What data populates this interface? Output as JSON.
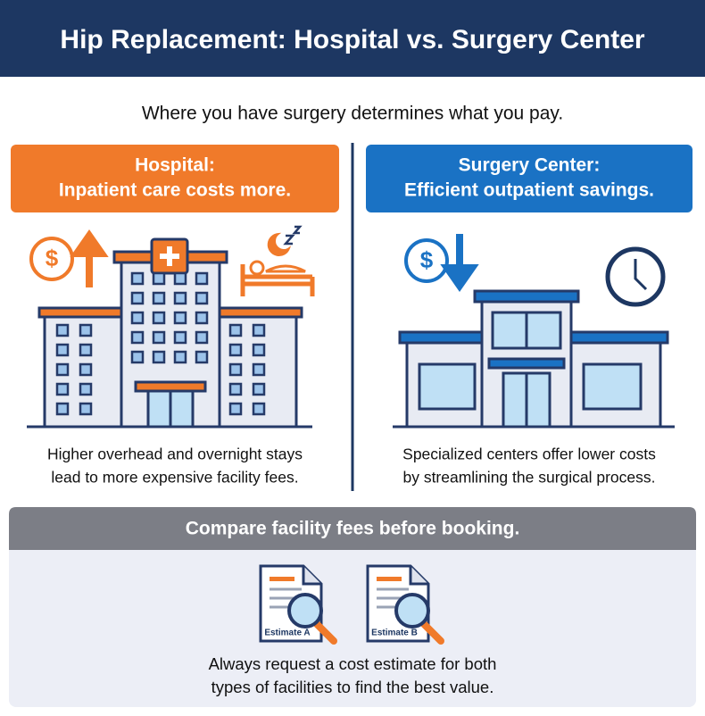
{
  "header": {
    "title": "Hip Replacement: Hospital vs. Surgery Center",
    "subtitle": "Where you have surgery determines what you pay."
  },
  "hospital": {
    "heading": [
      "Hospital:",
      "Inpatient care costs more."
    ],
    "description": [
      "Higher overhead and overnight stays",
      "lead to more expensive facility fees."
    ]
  },
  "surgery_center": {
    "heading": [
      "Surgery Center:",
      "Efficient outpatient savings."
    ],
    "description": [
      "Specialized centers offer lower costs",
      "by streamlining the surgical process."
    ]
  },
  "icons": {
    "currency": "$"
  },
  "compare": {
    "banner": "Compare facility fees before booking.",
    "documents": [
      "Estimate A",
      "Estimate B"
    ],
    "note": [
      "Always request a cost estimate for both",
      "types of facilities to find the best value."
    ]
  }
}
